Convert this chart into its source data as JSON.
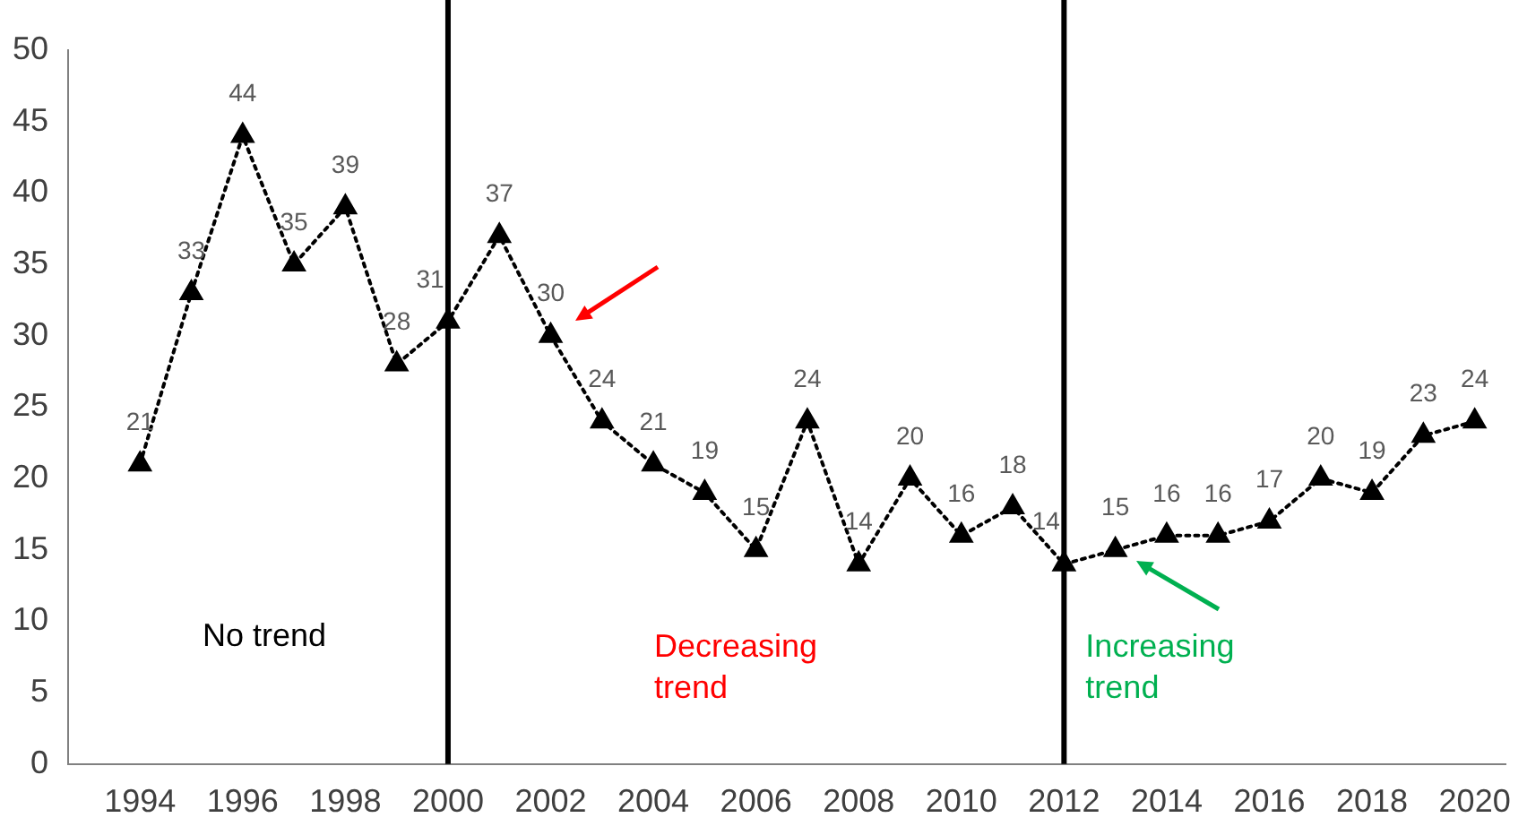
{
  "chart_data": {
    "type": "line",
    "x": [
      1994,
      1995,
      1996,
      1997,
      1998,
      1999,
      2000,
      2001,
      2002,
      2003,
      2004,
      2005,
      2006,
      2007,
      2008,
      2009,
      2010,
      2011,
      2012,
      2013,
      2014,
      2015,
      2016,
      2017,
      2018,
      2019,
      2020
    ],
    "series": [
      {
        "color": "#000000",
        "values": [
          21,
          33,
          44,
          35,
          39,
          28,
          31,
          37,
          30,
          24,
          21,
          19,
          15,
          24,
          14,
          20,
          16,
          18,
          14,
          15,
          16,
          16,
          17,
          20,
          19,
          23,
          24
        ]
      }
    ],
    "xlim": [
      1992.6,
      2020.6
    ],
    "xticks": [
      1994,
      1996,
      1998,
      2000,
      2002,
      2004,
      2006,
      2008,
      2010,
      2012,
      2014,
      2016,
      2018,
      2020
    ],
    "ylim": [
      0,
      50
    ],
    "yticks": [
      0,
      5,
      10,
      15,
      20,
      25,
      30,
      35,
      40,
      45,
      50
    ],
    "ref_lines": [
      {
        "axis": "x",
        "value": 2000,
        "color": "#000000"
      },
      {
        "axis": "x",
        "value": 2012,
        "color": "#000000"
      }
    ],
    "annotations": [
      "No trend",
      "Decreasing trend",
      "Increasing trend"
    ],
    "data_labels": true,
    "grid": false,
    "legend": false,
    "marker": "triangle",
    "line_style": "dotted"
  }
}
